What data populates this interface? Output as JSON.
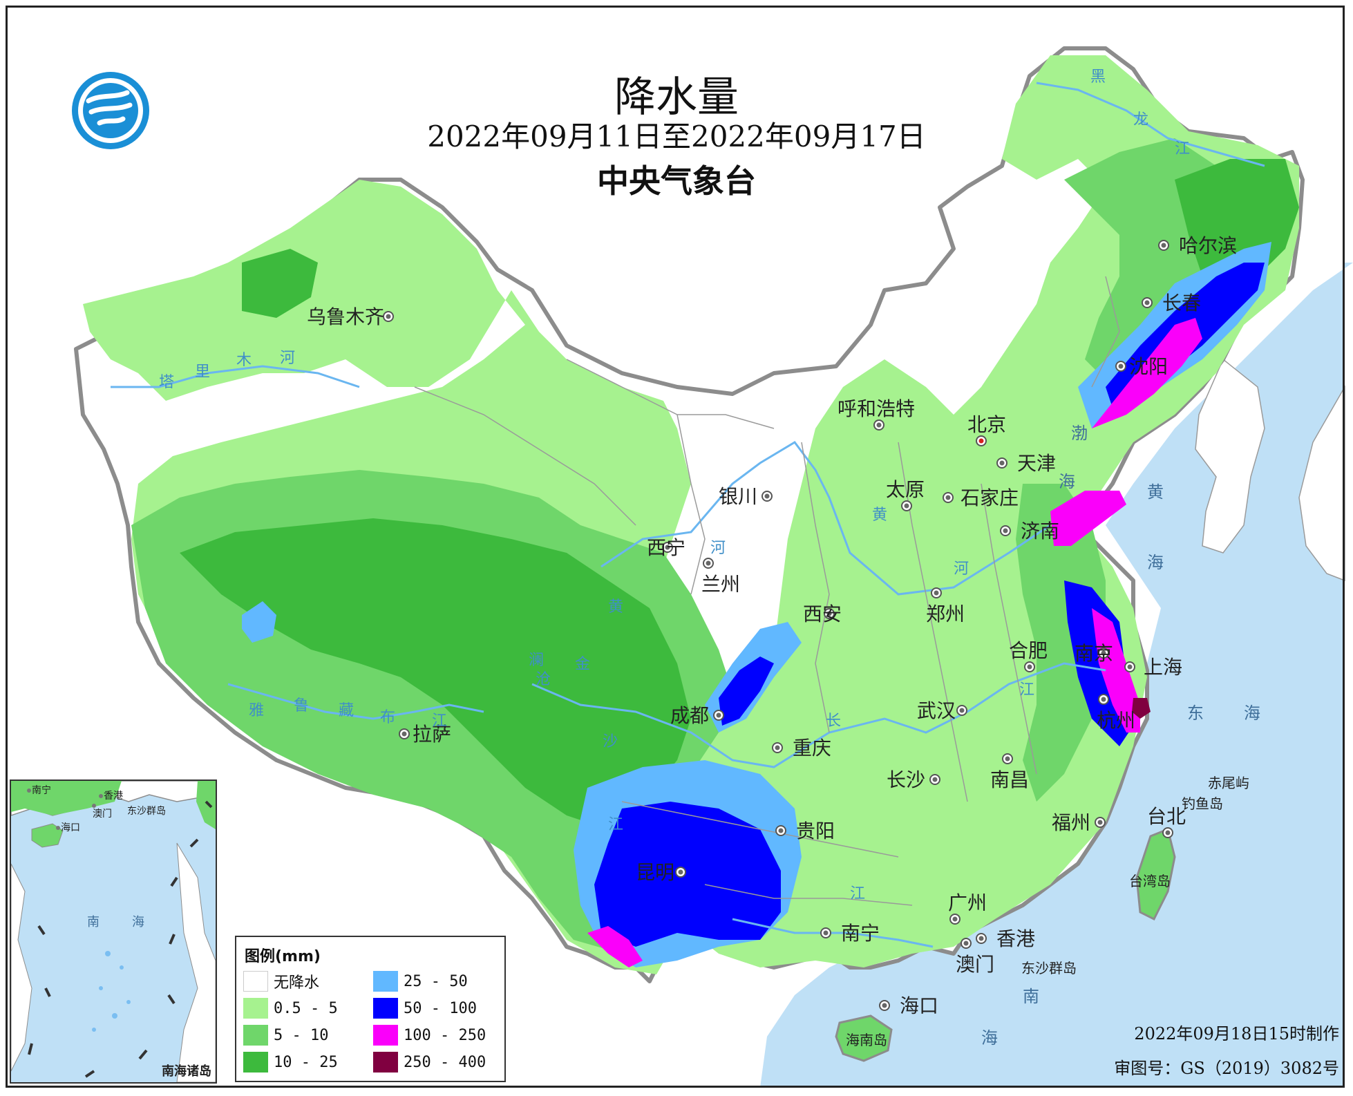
{
  "title": {
    "main": "降水量",
    "dates": "2022年09月11日至2022年09月17日",
    "agency": "中央气象台"
  },
  "logo": {
    "icon": "cma-logo-icon"
  },
  "cities": [
    {
      "name": "乌鲁木齐"
    },
    {
      "name": "拉萨"
    },
    {
      "name": "西宁"
    },
    {
      "name": "兰州"
    },
    {
      "name": "银川"
    },
    {
      "name": "呼和浩特"
    },
    {
      "name": "北京"
    },
    {
      "name": "天津"
    },
    {
      "name": "太原"
    },
    {
      "name": "石家庄"
    },
    {
      "name": "济南"
    },
    {
      "name": "郑州"
    },
    {
      "name": "西安"
    },
    {
      "name": "成都"
    },
    {
      "name": "重庆"
    },
    {
      "name": "武汉"
    },
    {
      "name": "合肥"
    },
    {
      "name": "南京"
    },
    {
      "name": "上海"
    },
    {
      "name": "杭州"
    },
    {
      "name": "长沙"
    },
    {
      "name": "南昌"
    },
    {
      "name": "福州"
    },
    {
      "name": "贵阳"
    },
    {
      "name": "昆明"
    },
    {
      "name": "南宁"
    },
    {
      "name": "广州"
    },
    {
      "name": "香港"
    },
    {
      "name": "澳门"
    },
    {
      "name": "海口"
    },
    {
      "name": "台北"
    },
    {
      "name": "沈阳"
    },
    {
      "name": "长春"
    },
    {
      "name": "哈尔滨"
    }
  ],
  "water_labels": {
    "bohai": "渤",
    "bohai2": "海",
    "huanghai1": "黄",
    "huanghai2": "海",
    "donghai1": "东",
    "donghai2": "海",
    "nanhai1": "南",
    "nanhai2": "海",
    "chiweiyu": "赤尾屿",
    "diaoyudao": "钓鱼岛",
    "taiwan_island": "台湾岛",
    "dongsha": "东沙群岛",
    "hainan_island": "海南岛"
  },
  "river_labels": {
    "tarim": [
      "塔",
      "里",
      "木",
      "河"
    ],
    "yarlung": [
      "雅",
      "鲁",
      "藏",
      "布",
      "江"
    ],
    "huanghe": [
      "黄",
      "河"
    ],
    "huanghe_lower": [
      "黄",
      "河"
    ],
    "changjiang": [
      "长",
      "江"
    ],
    "lancang": [
      "澜",
      "沧"
    ],
    "jinsha": [
      "金",
      "沙"
    ],
    "heilongjiang": [
      "黑",
      "龙",
      "江"
    ],
    "zhujiang": "江",
    "yuanjiang": "江"
  },
  "inset": {
    "title": "南海诸岛",
    "labels": [
      "南宁",
      "香港",
      "澳门",
      "东沙群岛",
      "海口",
      "南",
      "海"
    ]
  },
  "legend": {
    "title": "图例(mm)",
    "items": [
      {
        "label": "无降水",
        "color": "#ffffff"
      },
      {
        "label": "0.5 - 5",
        "color": "#a6f28f"
      },
      {
        "label": "5 - 10",
        "color": "#6fd66a"
      },
      {
        "label": "10 - 25",
        "color": "#3dba3d"
      },
      {
        "label": "25 - 50",
        "color": "#61b8ff"
      },
      {
        "label": "50 - 100",
        "color": "#0000fe"
      },
      {
        "label": "100 - 250",
        "color": "#fa00fa"
      },
      {
        "label": "250 - 400",
        "color": "#800040"
      }
    ]
  },
  "footer": {
    "made": "2022年09月18日15时制作",
    "review": "审图号：GS（2019）3082号"
  },
  "colors": {
    "sea": "#bfe0f6",
    "border": "#8c8c8c",
    "province_line": "#9a9a9a",
    "river": "#6ab6f0"
  }
}
